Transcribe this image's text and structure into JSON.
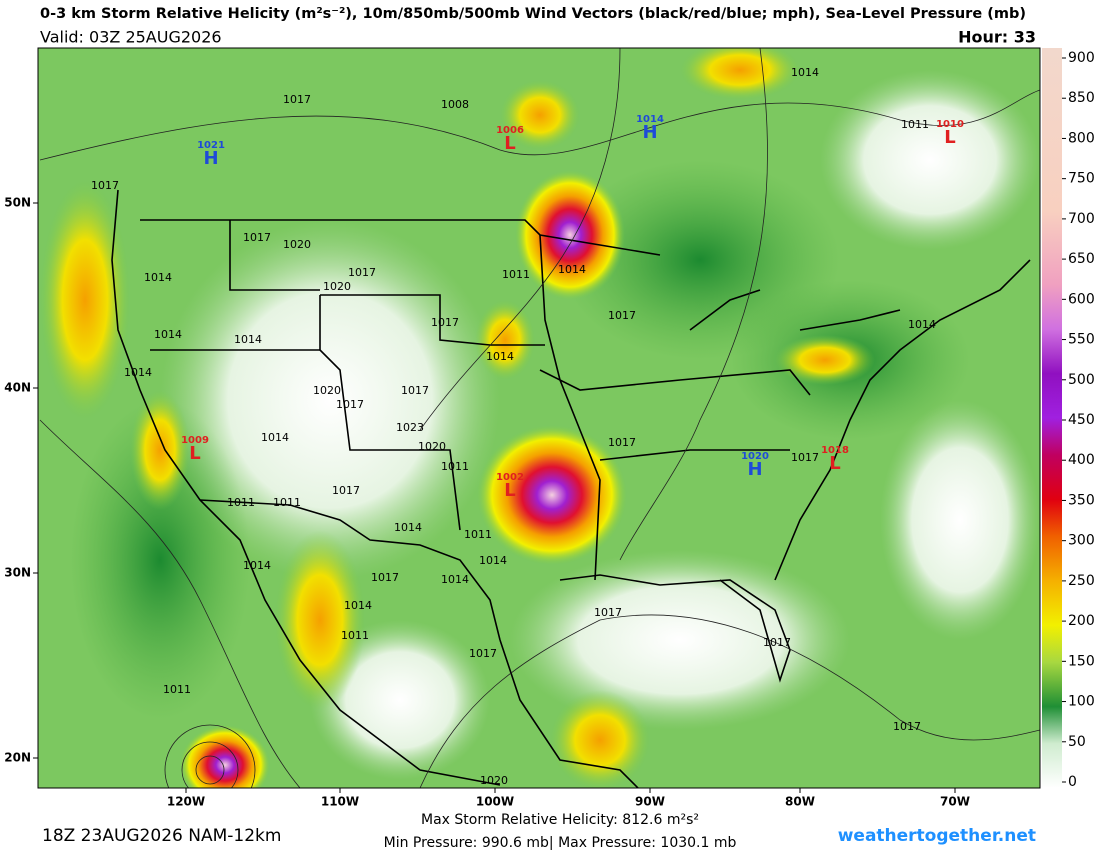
{
  "header": {
    "title": "0-3 km Storm Relative Helicity (m²s⁻²), 10m/850mb/500mb Wind Vectors (black/red/blue; mph), Sea-Level Pressure (mb)",
    "valid": "Valid: 03Z 25AUG2026",
    "hour": "Hour: 33"
  },
  "map": {
    "lat_labels": [
      "50N",
      "40N",
      "30N",
      "20N"
    ],
    "lon_labels": [
      "120W",
      "110W",
      "100W",
      "90W",
      "80W",
      "70W"
    ],
    "centers": [
      {
        "letter": "H",
        "value": 1021
      },
      {
        "letter": "H",
        "value": 1014
      },
      {
        "letter": "L",
        "value": 1006
      },
      {
        "letter": "L",
        "value": 1010
      },
      {
        "letter": "L",
        "value": 1009
      },
      {
        "letter": "H",
        "value": 1020
      },
      {
        "letter": "L",
        "value": 1018
      },
      {
        "letter": "L",
        "value": 1002
      }
    ],
    "isobar_labels": [
      1017,
      1008,
      1014,
      1011,
      1017,
      1017,
      1020,
      1014,
      1017,
      1011,
      1014,
      1020,
      1017,
      1017,
      1014,
      1014,
      1014,
      1014,
      1014,
      1020,
      1017,
      1023,
      1017,
      1014,
      1020,
      1011,
      1017,
      1017,
      1011,
      1011,
      1017,
      1014,
      1011,
      1014,
      1014,
      1017,
      1014,
      1014,
      1017,
      1011,
      1017,
      1017,
      1011,
      1017,
      1020
    ]
  },
  "colorbar": {
    "range": [
      0,
      900
    ],
    "ticks": [
      0,
      50,
      100,
      150,
      200,
      250,
      300,
      350,
      400,
      450,
      500,
      550,
      600,
      650,
      700,
      750,
      800,
      850,
      900
    ]
  },
  "footer": {
    "run": "18Z 23AUG2026 NAM-12km",
    "max_srh": "Max Storm Relative Helicity: 812.6 m²s²",
    "pressure": "Min Pressure: 990.6 mb| Max Pressure: 1030.1 mb",
    "site": "weathertogether.net"
  }
}
